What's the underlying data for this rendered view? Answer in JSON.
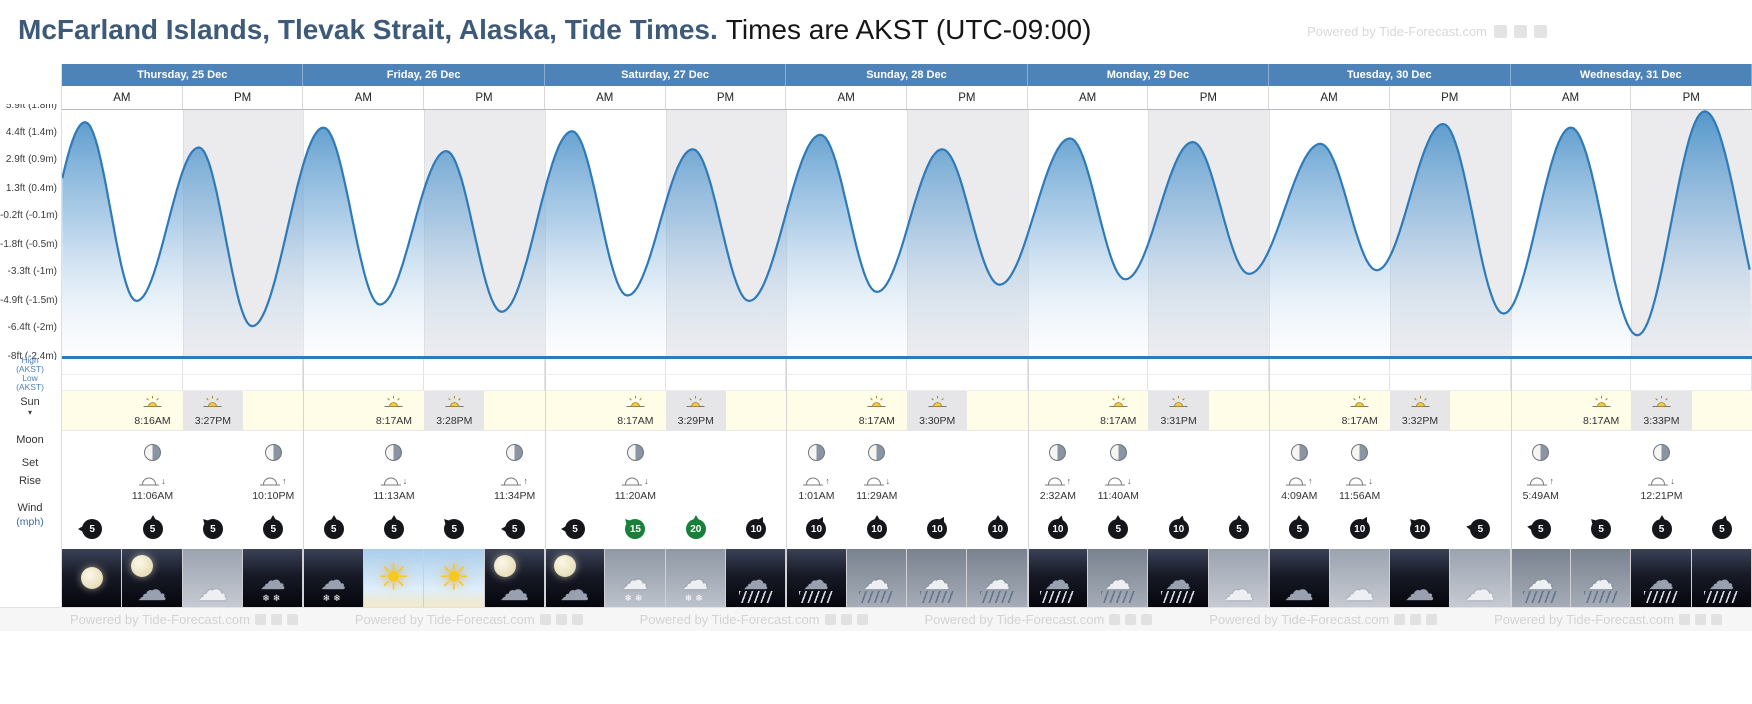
{
  "header": {
    "title": "McFarland Islands, Tlevak Strait, Alaska, Tide Times.",
    "subtitle": "Times are AKST (UTC-09:00)",
    "watermark": "Powered by Tide-Forecast.com"
  },
  "colors": {
    "header_blue": "#4e83b7",
    "curve_stroke": "#2f7ab8",
    "baseline_blue": "#2f7ab8",
    "pm_shade": "#ebebee",
    "wind_default": "#15161a",
    "wind_strong_green": "#188038",
    "title_blue": "#3d5a78"
  },
  "ampm": {
    "am": "AM",
    "pm": "PM"
  },
  "sidebar": {
    "high_label": "High (AKST)",
    "low_label": "Low (AKST)",
    "sun_label": "Sun",
    "sun_expander": "▾",
    "moon_label": "Moon",
    "set_label": "Set",
    "rise_label": "Rise",
    "wind_label": "Wind",
    "wind_unit": "(mph)"
  },
  "days": [
    {
      "label": "Thursday, 25 Dec",
      "sun": {
        "rise": "8:16AM",
        "set": "3:27PM"
      },
      "moon": [
        {
          "event": "set",
          "time": "11:06AM",
          "quarter": 1
        },
        {
          "event": "rise",
          "time": "10:10PM",
          "quarter": 3
        }
      ],
      "wind": [
        {
          "mph": 5,
          "dir": 270
        },
        {
          "mph": 5,
          "dir": 0
        },
        {
          "mph": 5,
          "dir": 315
        },
        {
          "mph": 5,
          "dir": 0
        }
      ],
      "weather": [
        "clear-night",
        "cloudy-night",
        "cloudy",
        "snow-night"
      ]
    },
    {
      "label": "Friday, 26 Dec",
      "sun": {
        "rise": "8:17AM",
        "set": "3:28PM"
      },
      "moon": [
        {
          "event": "set",
          "time": "11:13AM",
          "quarter": 1
        },
        {
          "event": "rise",
          "time": "11:34PM",
          "quarter": 3
        }
      ],
      "wind": [
        {
          "mph": 5,
          "dir": 0
        },
        {
          "mph": 5,
          "dir": 0
        },
        {
          "mph": 5,
          "dir": 315
        },
        {
          "mph": 5,
          "dir": 270
        }
      ],
      "weather": [
        "snow-night",
        "sunny",
        "sunny",
        "cloudy-night"
      ]
    },
    {
      "label": "Saturday, 27 Dec",
      "sun": {
        "rise": "8:17AM",
        "set": "3:29PM"
      },
      "moon": [
        {
          "event": "set",
          "time": "11:20AM",
          "quarter": 1
        }
      ],
      "wind": [
        {
          "mph": 5,
          "dir": 270
        },
        {
          "mph": 15,
          "dir": 315,
          "color": "#188038"
        },
        {
          "mph": 20,
          "dir": 0,
          "color": "#188038"
        },
        {
          "mph": 10,
          "dir": 30
        }
      ],
      "weather": [
        "cloudy-night",
        "snow",
        "snow",
        "rain-night"
      ]
    },
    {
      "label": "Sunday, 28 Dec",
      "sun": {
        "rise": "8:17AM",
        "set": "3:30PM"
      },
      "moon": [
        {
          "event": "rise",
          "time": "1:01AM",
          "quarter": 0
        },
        {
          "event": "set",
          "time": "11:29AM",
          "quarter": 1
        }
      ],
      "wind": [
        {
          "mph": 10,
          "dir": 30
        },
        {
          "mph": 10,
          "dir": 0
        },
        {
          "mph": 10,
          "dir": 30
        },
        {
          "mph": 10,
          "dir": 0
        }
      ],
      "weather": [
        "rain-night",
        "rain",
        "rain",
        "rain"
      ]
    },
    {
      "label": "Monday, 29 Dec",
      "sun": {
        "rise": "8:17AM",
        "set": "3:31PM"
      },
      "moon": [
        {
          "event": "rise",
          "time": "2:32AM",
          "quarter": 0
        },
        {
          "event": "set",
          "time": "11:40AM",
          "quarter": 1
        }
      ],
      "wind": [
        {
          "mph": 10,
          "dir": 15
        },
        {
          "mph": 5,
          "dir": 0
        },
        {
          "mph": 10,
          "dir": 15
        },
        {
          "mph": 5,
          "dir": 0
        }
      ],
      "weather": [
        "rain-night",
        "rain",
        "rain-night",
        "cloudy"
      ]
    },
    {
      "label": "Tuesday, 30 Dec",
      "sun": {
        "rise": "8:17AM",
        "set": "3:32PM"
      },
      "moon": [
        {
          "event": "rise",
          "time": "4:09AM",
          "quarter": 0
        },
        {
          "event": "set",
          "time": "11:56AM",
          "quarter": 1
        }
      ],
      "wind": [
        {
          "mph": 5,
          "dir": 0
        },
        {
          "mph": 10,
          "dir": 30
        },
        {
          "mph": 10,
          "dir": 315
        },
        {
          "mph": 5,
          "dir": 280
        }
      ],
      "weather": [
        "cloud-night",
        "cloudy",
        "cloud-night",
        "cloudy"
      ]
    },
    {
      "label": "Wednesday, 31 Dec",
      "sun": {
        "rise": "8:17AM",
        "set": "3:33PM"
      },
      "moon": [
        {
          "event": "rise",
          "time": "5:49AM",
          "quarter": 0
        },
        {
          "event": "set",
          "time": "12:21PM",
          "quarter": 2
        }
      ],
      "wind": [
        {
          "mph": 5,
          "dir": 280
        },
        {
          "mph": 5,
          "dir": 315
        },
        {
          "mph": 5,
          "dir": 0
        },
        {
          "mph": 5,
          "dir": 15
        }
      ],
      "weather": [
        "rain",
        "rain",
        "rain-night",
        "rain-night"
      ]
    }
  ],
  "chart_data": {
    "type": "area",
    "title": "Tide height curve, McFarland Islands, Tlevak Strait",
    "x_unit": "hours from Thursday 25 Dec 00:00 AKST",
    "y_unit": "feet",
    "x_range": [
      0,
      168
    ],
    "y_axis_labels": [
      {
        "ft": 5.9,
        "label": "5.9ft (1.8m)"
      },
      {
        "ft": 4.4,
        "label": "4.4ft (1.4m)"
      },
      {
        "ft": 2.9,
        "label": "2.9ft (0.9m)"
      },
      {
        "ft": 1.3,
        "label": "1.3ft (0.4m)"
      },
      {
        "ft": -0.2,
        "label": "-0.2ft (-0.1m)"
      },
      {
        "ft": -1.8,
        "label": "-1.8ft (-0.5m)"
      },
      {
        "ft": -3.3,
        "label": "-3.3ft (-1m)"
      },
      {
        "ft": -4.9,
        "label": "-4.9ft (-1.5m)"
      },
      {
        "ft": -6.4,
        "label": "-6.4ft (-2m)"
      },
      {
        "ft": -8,
        "label": "-8ft (-2.4m)"
      }
    ],
    "extremes": [
      {
        "t": -4.0,
        "ft": -5.8
      },
      {
        "t": 2.3,
        "ft": 5.0
      },
      {
        "t": 7.4,
        "ft": -4.9
      },
      {
        "t": 13.6,
        "ft": 3.6
      },
      {
        "t": 18.9,
        "ft": -6.3
      },
      {
        "t": 26.0,
        "ft": 4.7
      },
      {
        "t": 31.6,
        "ft": -5.1
      },
      {
        "t": 38.2,
        "ft": 3.4
      },
      {
        "t": 43.7,
        "ft": -5.5
      },
      {
        "t": 50.7,
        "ft": 4.5
      },
      {
        "t": 56.2,
        "ft": -4.6
      },
      {
        "t": 62.7,
        "ft": 3.5
      },
      {
        "t": 68.3,
        "ft": -4.9
      },
      {
        "t": 75.4,
        "ft": 4.3
      },
      {
        "t": 81.0,
        "ft": -4.4
      },
      {
        "t": 87.5,
        "ft": 3.5
      },
      {
        "t": 93.2,
        "ft": -4.0
      },
      {
        "t": 100.2,
        "ft": 4.1
      },
      {
        "t": 105.7,
        "ft": -3.7
      },
      {
        "t": 112.4,
        "ft": 3.9
      },
      {
        "t": 118.0,
        "ft": -3.4
      },
      {
        "t": 125.1,
        "ft": 3.8
      },
      {
        "t": 130.7,
        "ft": -3.2
      },
      {
        "t": 137.3,
        "ft": 4.9
      },
      {
        "t": 143.3,
        "ft": -5.6
      },
      {
        "t": 150.0,
        "ft": 4.7
      },
      {
        "t": 156.6,
        "ft": -6.8
      },
      {
        "t": 163.3,
        "ft": 5.6
      },
      {
        "t": 170.5,
        "ft": -7.2
      }
    ]
  },
  "footer": {
    "watermark": "Powered by Tide-Forecast.com"
  }
}
